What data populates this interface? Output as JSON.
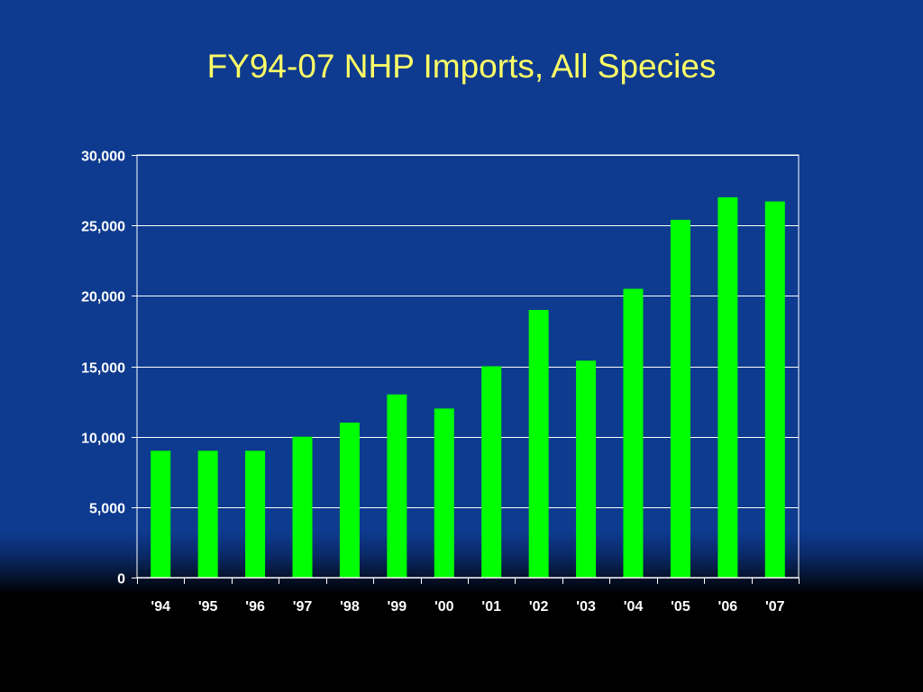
{
  "chart_data": {
    "type": "bar",
    "title": "FY94-07 NHP Imports, All Species",
    "xlabel": "",
    "ylabel": "",
    "categories": [
      "'94",
      "'95",
      "'96",
      "'97",
      "'98",
      "'99",
      "'00",
      "'01",
      "'02",
      "'03",
      "'04",
      "'05",
      "'06",
      "'07"
    ],
    "values": [
      9000,
      9000,
      9000,
      10000,
      11000,
      13000,
      12000,
      15000,
      19000,
      15400,
      20500,
      25400,
      27000,
      26700
    ],
    "ylim": [
      0,
      30000
    ],
    "yticks": [
      "0",
      "5,000",
      "10,000",
      "15,000",
      "20,000",
      "25,000",
      "30,000"
    ],
    "ytick_values": [
      0,
      5000,
      10000,
      15000,
      20000,
      25000,
      30000
    ],
    "grid": true,
    "legend": "none",
    "colors": {
      "bar": "#00ff00",
      "gridline": "#ffffff",
      "axis_text": "#ffffff",
      "title": "#ffff66",
      "background": "#0e3b8f"
    }
  }
}
